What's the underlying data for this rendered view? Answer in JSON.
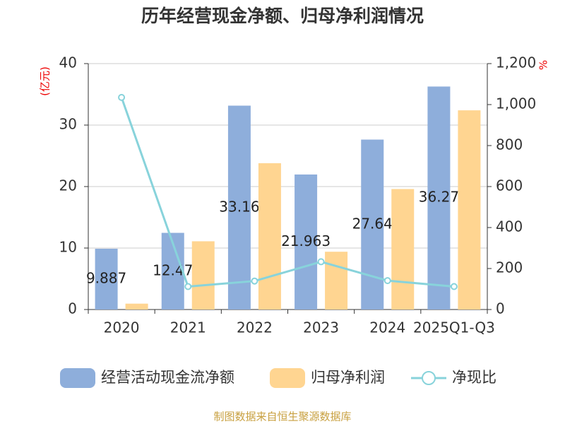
{
  "chart_data": {
    "type": "bar-line",
    "title": "历年经营现金净额、归母净利润情况",
    "y_label": "(亿元)",
    "y2_label": "%",
    "source": "制图数据来自恒生聚源数据库",
    "categories": [
      "2020",
      "2021",
      "2022",
      "2023",
      "2024",
      "2025Q1-Q3"
    ],
    "series": [
      {
        "name": "经营活动现金流净额",
        "color": "#8eaedb",
        "type": "bar",
        "values": [
          9.887,
          12.47,
          33.16,
          21.963,
          27.64,
          36.27
        ]
      },
      {
        "name": "归母净利润",
        "color": "#ffd591",
        "type": "bar",
        "values": [
          0.955,
          11.1,
          23.8,
          9.4,
          19.6,
          32.4
        ]
      },
      {
        "name": "净现比",
        "color": "#88d3db",
        "type": "line",
        "axis": "y2",
        "values": [
          1035,
          112,
          139,
          233,
          141,
          112
        ]
      }
    ],
    "ylim": [
      0,
      40
    ],
    "yticks": [
      0,
      10,
      20,
      30,
      40
    ],
    "y2lim": [
      0,
      1200
    ],
    "y2ticks": [
      0,
      200,
      400,
      600,
      800,
      {
        "value": 1000,
        "label": "1,000"
      },
      {
        "value": 1200,
        "label": "1,200"
      }
    ],
    "grid": true
  }
}
